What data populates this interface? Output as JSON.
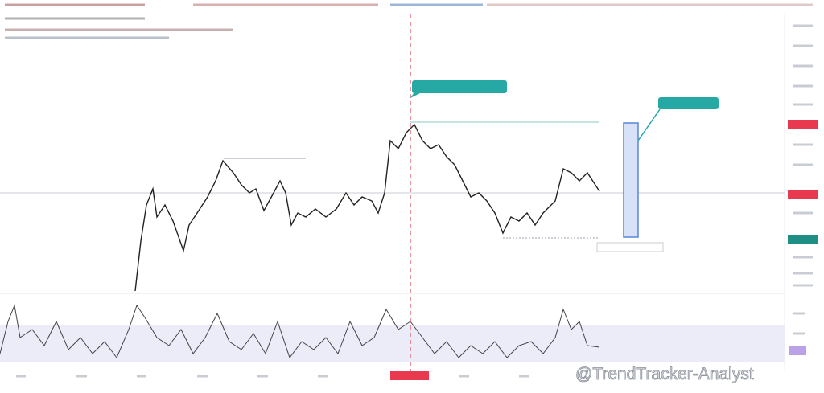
{
  "watermark": "@TrendTracker-Analyst"
}
